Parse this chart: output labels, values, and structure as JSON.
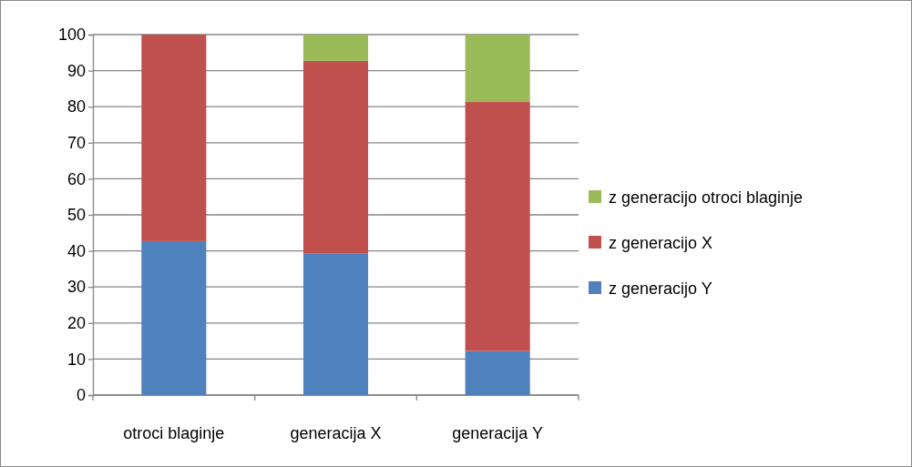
{
  "chart_data": {
    "type": "bar",
    "stacked": true,
    "categories": [
      "otroci blaginje",
      "generacija X",
      "generacija Y"
    ],
    "series": [
      {
        "name": "z generacijo Y",
        "color": "#4f81bd",
        "values": [
          42.7,
          39.2,
          12.2
        ]
      },
      {
        "name": "z generacijo X",
        "color": "#c0504d",
        "values": [
          57.3,
          53.5,
          69.1
        ]
      },
      {
        "name": "z generacijo otroci blaginje",
        "color": "#9bbb59",
        "values": [
          0,
          7.3,
          18.7
        ]
      }
    ],
    "ylim": [
      0,
      100
    ],
    "yticks": [
      0,
      10,
      20,
      30,
      40,
      50,
      60,
      70,
      80,
      90,
      100
    ],
    "grid": "y",
    "legend": "right"
  }
}
